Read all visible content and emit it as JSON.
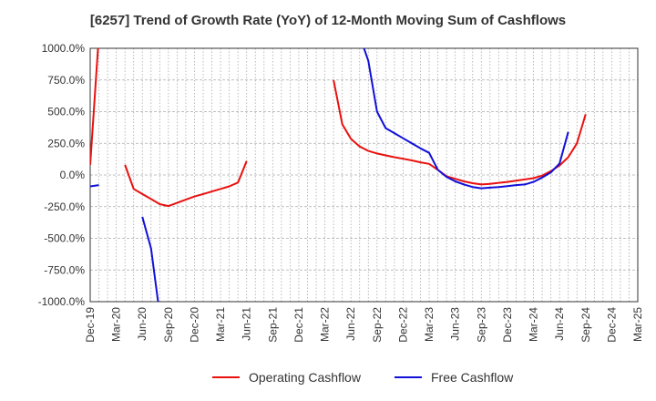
{
  "chart_data": {
    "type": "line",
    "title": "[6257]  Trend of Growth Rate (YoY) of 12-Month Moving Sum of Cashflows",
    "xlabel": "",
    "ylabel": "",
    "ylim": [
      -1000,
      1000
    ],
    "y_ticks": [
      1000,
      750,
      500,
      250,
      0,
      -250,
      -500,
      -750,
      -1000
    ],
    "y_tick_labels": [
      "1000.0%",
      "750.0%",
      "500.0%",
      "250.0%",
      "0.0%",
      "-250.0%",
      "-500.0%",
      "-750.0%",
      "-1000.0%"
    ],
    "x_range": [
      "2019-12",
      "2025-03"
    ],
    "x_tick_labels": [
      "Dec-19",
      "Mar-20",
      "Jun-20",
      "Sep-20",
      "Dec-20",
      "Mar-21",
      "Jun-21",
      "Sep-21",
      "Dec-21",
      "Mar-22",
      "Jun-22",
      "Sep-22",
      "Dec-22",
      "Mar-23",
      "Jun-23",
      "Sep-23",
      "Dec-23",
      "Mar-24",
      "Jun-24",
      "Sep-24",
      "Dec-24",
      "Mar-25"
    ],
    "grid": true,
    "legend_position": "bottom",
    "series": [
      {
        "name": "Operating Cashflow",
        "color": "#e8110f",
        "segments": [
          [
            [
              "2019-12",
              80
            ],
            [
              "2020-01",
              1100
            ]
          ],
          [
            [
              "2020-04",
              80
            ],
            [
              "2020-05",
              -110
            ],
            [
              "2020-06",
              -150
            ],
            [
              "2020-07",
              -190
            ],
            [
              "2020-08",
              -230
            ],
            [
              "2020-09",
              -245
            ],
            [
              "2020-10",
              -220
            ],
            [
              "2020-11",
              -195
            ],
            [
              "2020-12",
              -170
            ],
            [
              "2021-01",
              -150
            ],
            [
              "2021-02",
              -130
            ],
            [
              "2021-03",
              -110
            ],
            [
              "2021-04",
              -90
            ],
            [
              "2021-05",
              -60
            ],
            [
              "2021-06",
              110
            ]
          ],
          [
            [
              "2022-04",
              750
            ],
            [
              "2022-05",
              400
            ],
            [
              "2022-06",
              285
            ],
            [
              "2022-07",
              225
            ],
            [
              "2022-08",
              190
            ],
            [
              "2022-09",
              170
            ],
            [
              "2022-10",
              155
            ],
            [
              "2022-11",
              140
            ],
            [
              "2022-12",
              128
            ],
            [
              "2023-01",
              115
            ],
            [
              "2023-02",
              100
            ],
            [
              "2023-03",
              88
            ],
            [
              "2023-04",
              40
            ],
            [
              "2023-05",
              -10
            ],
            [
              "2023-06",
              -30
            ],
            [
              "2023-07",
              -50
            ],
            [
              "2023-08",
              -65
            ],
            [
              "2023-09",
              -75
            ],
            [
              "2023-10",
              -70
            ],
            [
              "2023-11",
              -62
            ],
            [
              "2023-12",
              -55
            ],
            [
              "2024-01",
              -45
            ],
            [
              "2024-02",
              -35
            ],
            [
              "2024-03",
              -25
            ],
            [
              "2024-04",
              -5
            ],
            [
              "2024-05",
              30
            ],
            [
              "2024-06",
              75
            ],
            [
              "2024-07",
              140
            ],
            [
              "2024-08",
              250
            ],
            [
              "2024-09",
              480
            ]
          ]
        ]
      },
      {
        "name": "Free Cashflow",
        "color": "#1010d8",
        "segments": [
          [
            [
              "2019-12",
              -90
            ],
            [
              "2020-01",
              -80
            ]
          ],
          [
            [
              "2020-06",
              -330
            ],
            [
              "2020-07",
              -580
            ],
            [
              "2020-08",
              -1100
            ]
          ],
          [
            [
              "2022-07",
              1100
            ],
            [
              "2022-08",
              900
            ],
            [
              "2022-09",
              500
            ],
            [
              "2022-10",
              370
            ],
            [
              "2022-11",
              330
            ],
            [
              "2022-12",
              290
            ],
            [
              "2023-01",
              250
            ],
            [
              "2023-02",
              210
            ],
            [
              "2023-03",
              175
            ],
            [
              "2023-04",
              40
            ],
            [
              "2023-05",
              -15
            ],
            [
              "2023-06",
              -50
            ],
            [
              "2023-07",
              -75
            ],
            [
              "2023-08",
              -95
            ],
            [
              "2023-09",
              -105
            ],
            [
              "2023-10",
              -100
            ],
            [
              "2023-11",
              -95
            ],
            [
              "2023-12",
              -88
            ],
            [
              "2024-01",
              -80
            ],
            [
              "2024-02",
              -75
            ],
            [
              "2024-03",
              -55
            ],
            [
              "2024-04",
              -20
            ],
            [
              "2024-05",
              20
            ],
            [
              "2024-06",
              90
            ],
            [
              "2024-07",
              340
            ]
          ]
        ]
      }
    ]
  }
}
